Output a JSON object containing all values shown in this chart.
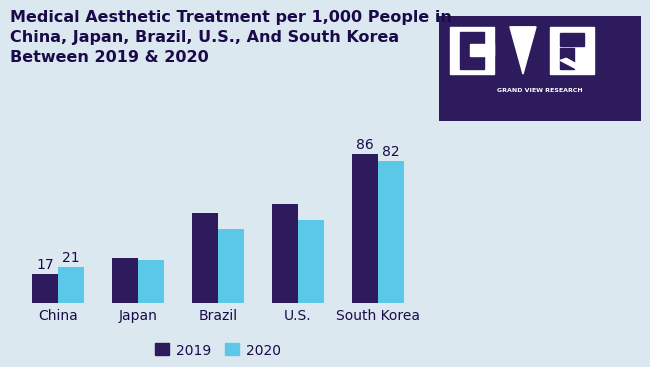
{
  "title": "Medical Aesthetic Treatment per 1,000 People in\nChina, Japan, Brazil, U.S., And South Korea\nBetween 2019 & 2020",
  "categories": [
    "China",
    "Japan",
    "Brazil",
    "U.S.",
    "South Korea"
  ],
  "values_2019": [
    17,
    26,
    52,
    57,
    86
  ],
  "values_2020": [
    21,
    25,
    43,
    48,
    82
  ],
  "color_2019": "#2D1B5E",
  "color_2020": "#5BC8E8",
  "bar_width": 0.32,
  "bg_color": "#dce8f0",
  "title_color": "#1a0a4a",
  "label_color": "#1a0a4a",
  "legend_labels": [
    "2019",
    "2020"
  ],
  "annotated_categories": [
    "China",
    "South Korea"
  ],
  "annotations": {
    "China": [
      17,
      21
    ],
    "South Korea": [
      86,
      82
    ]
  },
  "title_fontsize": 11.5,
  "tick_fontsize": 10,
  "legend_fontsize": 10,
  "logo_bg_color": "#2D1B5E",
  "logo_text": "GRAND VIEW RESEARCH",
  "ylim": [
    0,
    105
  ]
}
